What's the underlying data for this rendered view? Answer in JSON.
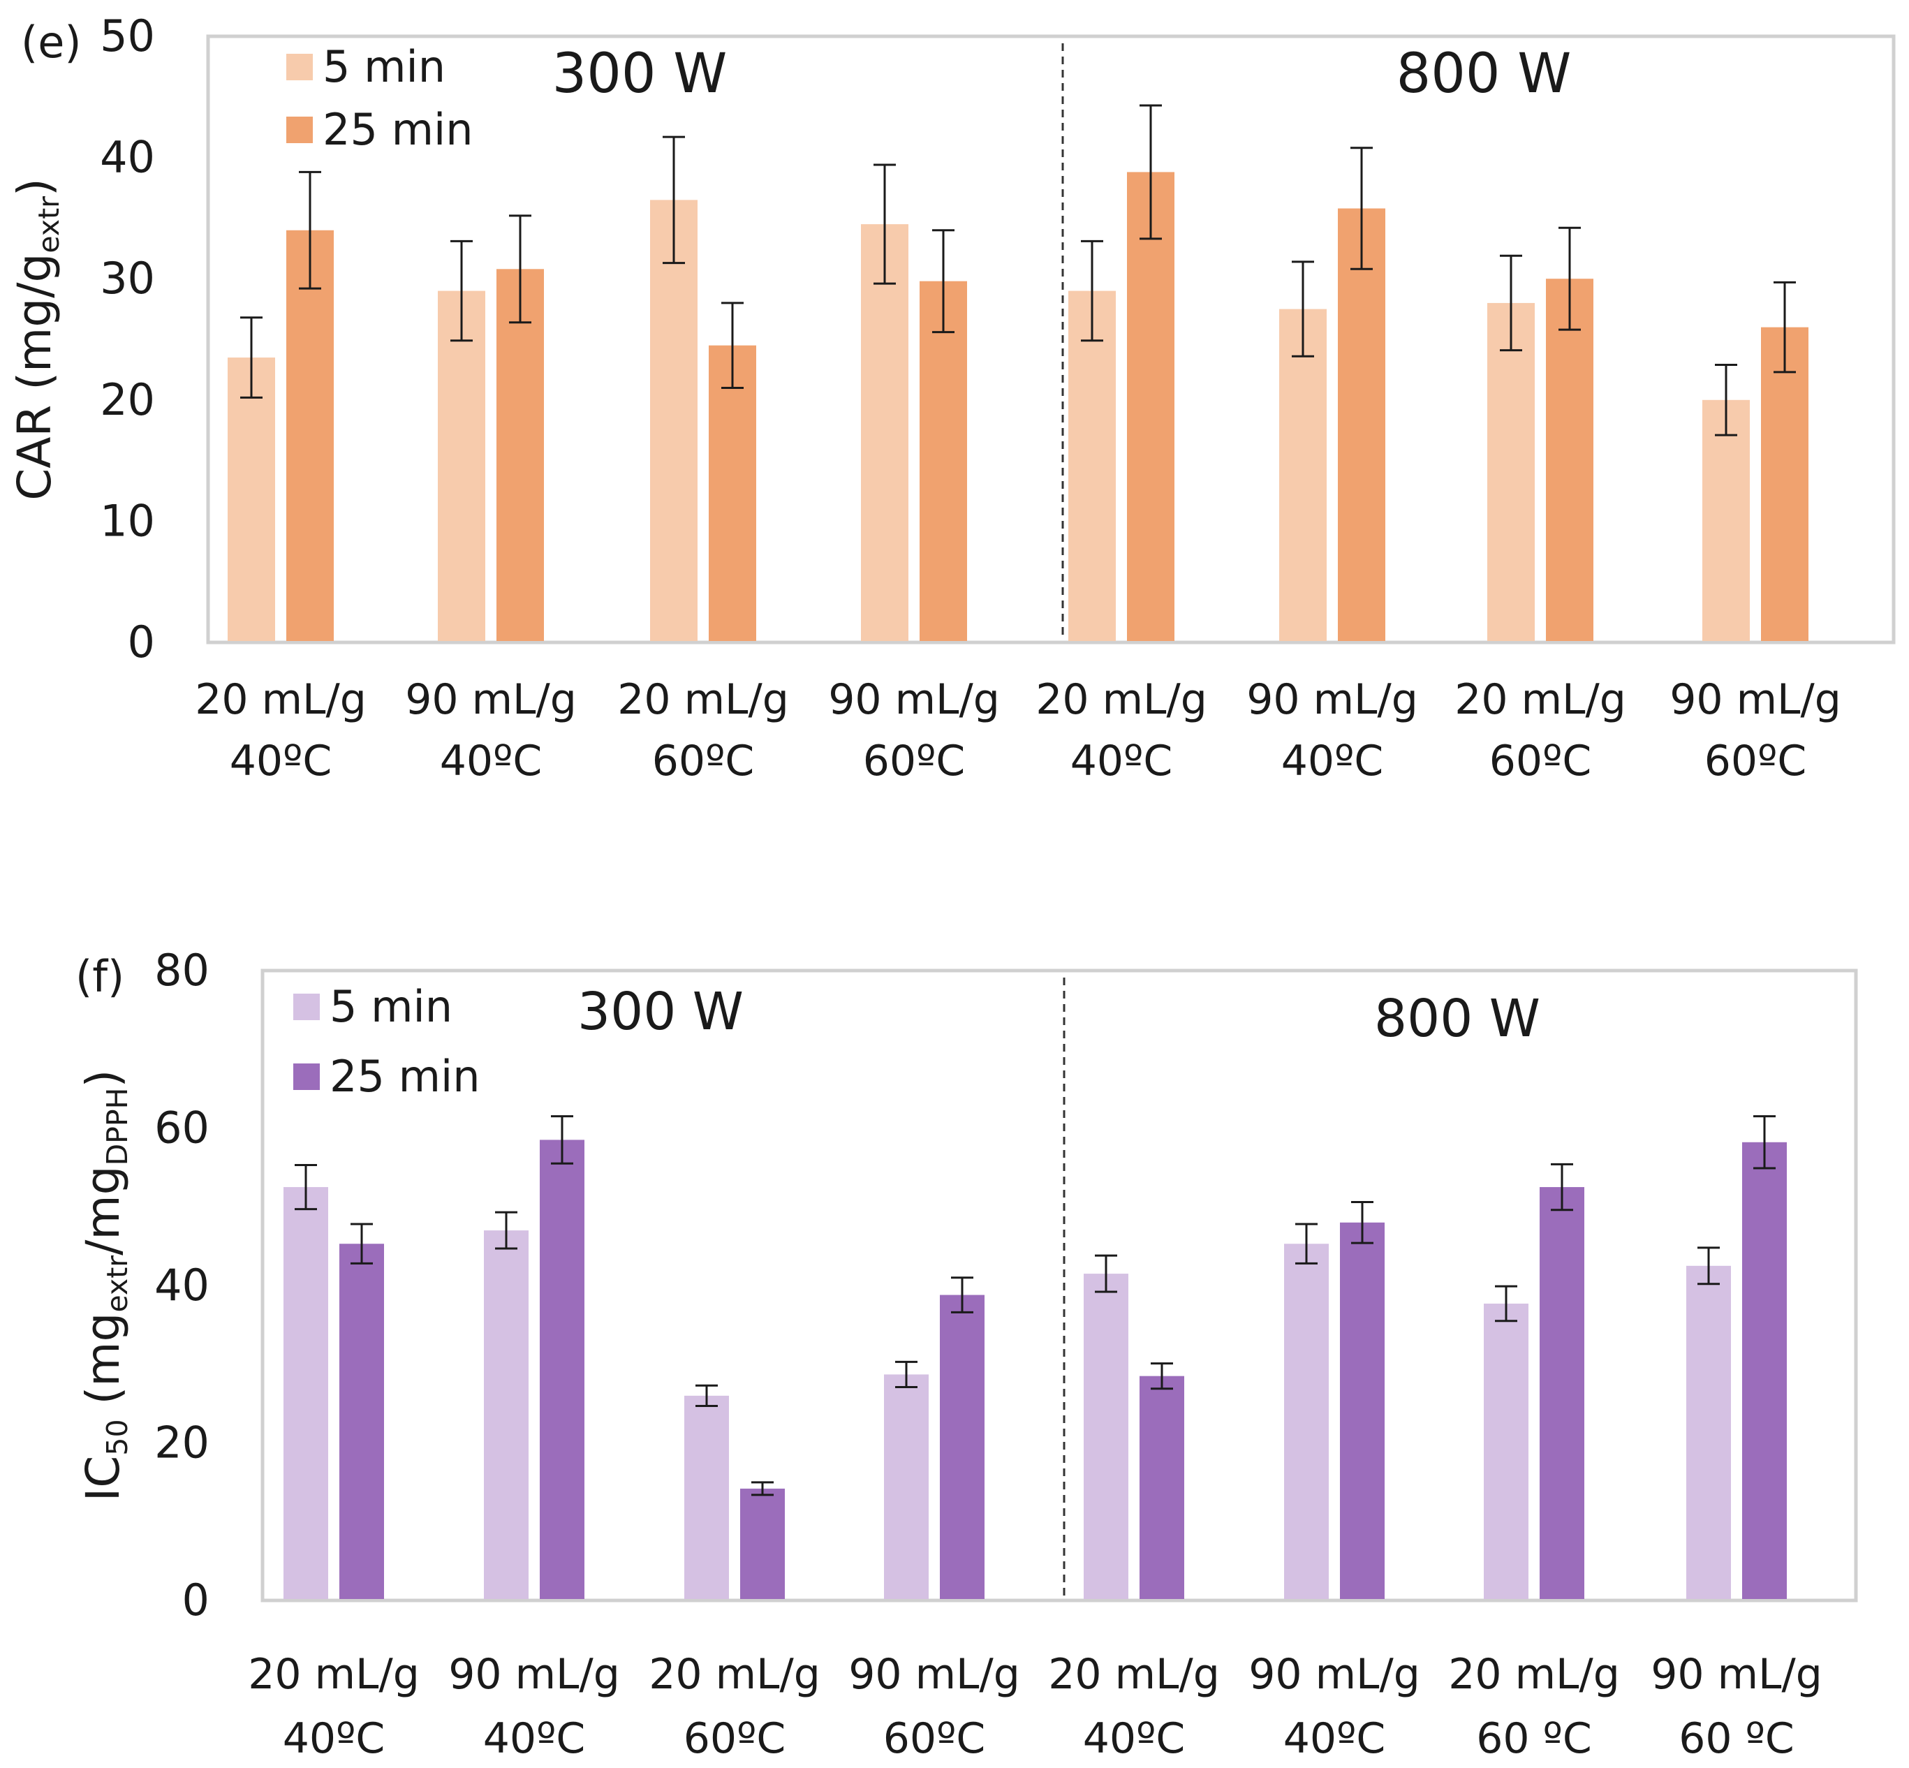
{
  "chart_data": [
    {
      "type": "bar",
      "panel_label": "(e)",
      "ylabel_main": "CAR (mg/g",
      "ylabel_sub": "extr",
      "ylabel_close": ")",
      "ylim": [
        0,
        50
      ],
      "yticks": [
        0,
        10,
        20,
        30,
        40,
        50
      ],
      "group_labels": [
        "300 W",
        "800 W"
      ],
      "categories": [
        [
          "20 mL/g",
          "40ºC"
        ],
        [
          "90 mL/g",
          "40ºC"
        ],
        [
          "20 mL/g",
          "60ºC"
        ],
        [
          "90 mL/g",
          "60ºC"
        ],
        [
          "20 mL/g",
          "40ºC"
        ],
        [
          "90 mL/g",
          "40ºC"
        ],
        [
          "20 mL/g",
          "60ºC"
        ],
        [
          "90 mL/g",
          "60ºC"
        ]
      ],
      "series": [
        {
          "name": "5 min",
          "color": "#f7cbac",
          "values": [
            23.5,
            29.0,
            36.5,
            34.5,
            29.0,
            27.5,
            28.0,
            20.0
          ],
          "errors": [
            3.3,
            4.1,
            5.2,
            4.9,
            4.1,
            3.9,
            3.9,
            2.9
          ]
        },
        {
          "name": "25 min",
          "color": "#f0a26f",
          "values": [
            34.0,
            30.8,
            24.5,
            29.8,
            38.8,
            35.8,
            30.0,
            26.0
          ],
          "errors": [
            4.8,
            4.4,
            3.5,
            4.2,
            5.5,
            5.0,
            4.2,
            3.7
          ]
        }
      ]
    },
    {
      "type": "bar",
      "panel_label": "(f)",
      "ylabel_main": "IC",
      "ylabel_sub": "50",
      "ylabel_mid": " (mg",
      "ylabel_sub2": "extr",
      "ylabel_mid2": "/mg",
      "ylabel_sub3": "DPPH",
      "ylabel_close": ")",
      "ylim": [
        0,
        80
      ],
      "yticks": [
        0,
        20,
        40,
        60,
        80
      ],
      "group_labels": [
        "300 W",
        "800 W"
      ],
      "categories": [
        [
          "20 mL/g",
          "40ºC"
        ],
        [
          "90 mL/g",
          "40ºC"
        ],
        [
          "20 mL/g",
          "60ºC"
        ],
        [
          "90 mL/g",
          "60ºC"
        ],
        [
          "20 mL/g",
          "40ºC"
        ],
        [
          "90 mL/g",
          "40ºC"
        ],
        [
          "20 mL/g",
          "60 ºC"
        ],
        [
          "90 mL/g",
          "60 ºC"
        ]
      ],
      "series": [
        {
          "name": "5 min",
          "color": "#d5c1e3",
          "values": [
            52.5,
            47.0,
            26.0,
            28.7,
            41.5,
            45.3,
            37.7,
            42.5
          ],
          "errors": [
            2.8,
            2.3,
            1.3,
            1.6,
            2.3,
            2.5,
            2.2,
            2.3
          ]
        },
        {
          "name": "25 min",
          "color": "#9b6dbb",
          "values": [
            45.3,
            58.5,
            14.2,
            38.8,
            28.5,
            48.0,
            52.5,
            58.2
          ],
          "errors": [
            2.5,
            3.0,
            0.8,
            2.2,
            1.6,
            2.6,
            2.9,
            3.3
          ]
        }
      ]
    }
  ]
}
